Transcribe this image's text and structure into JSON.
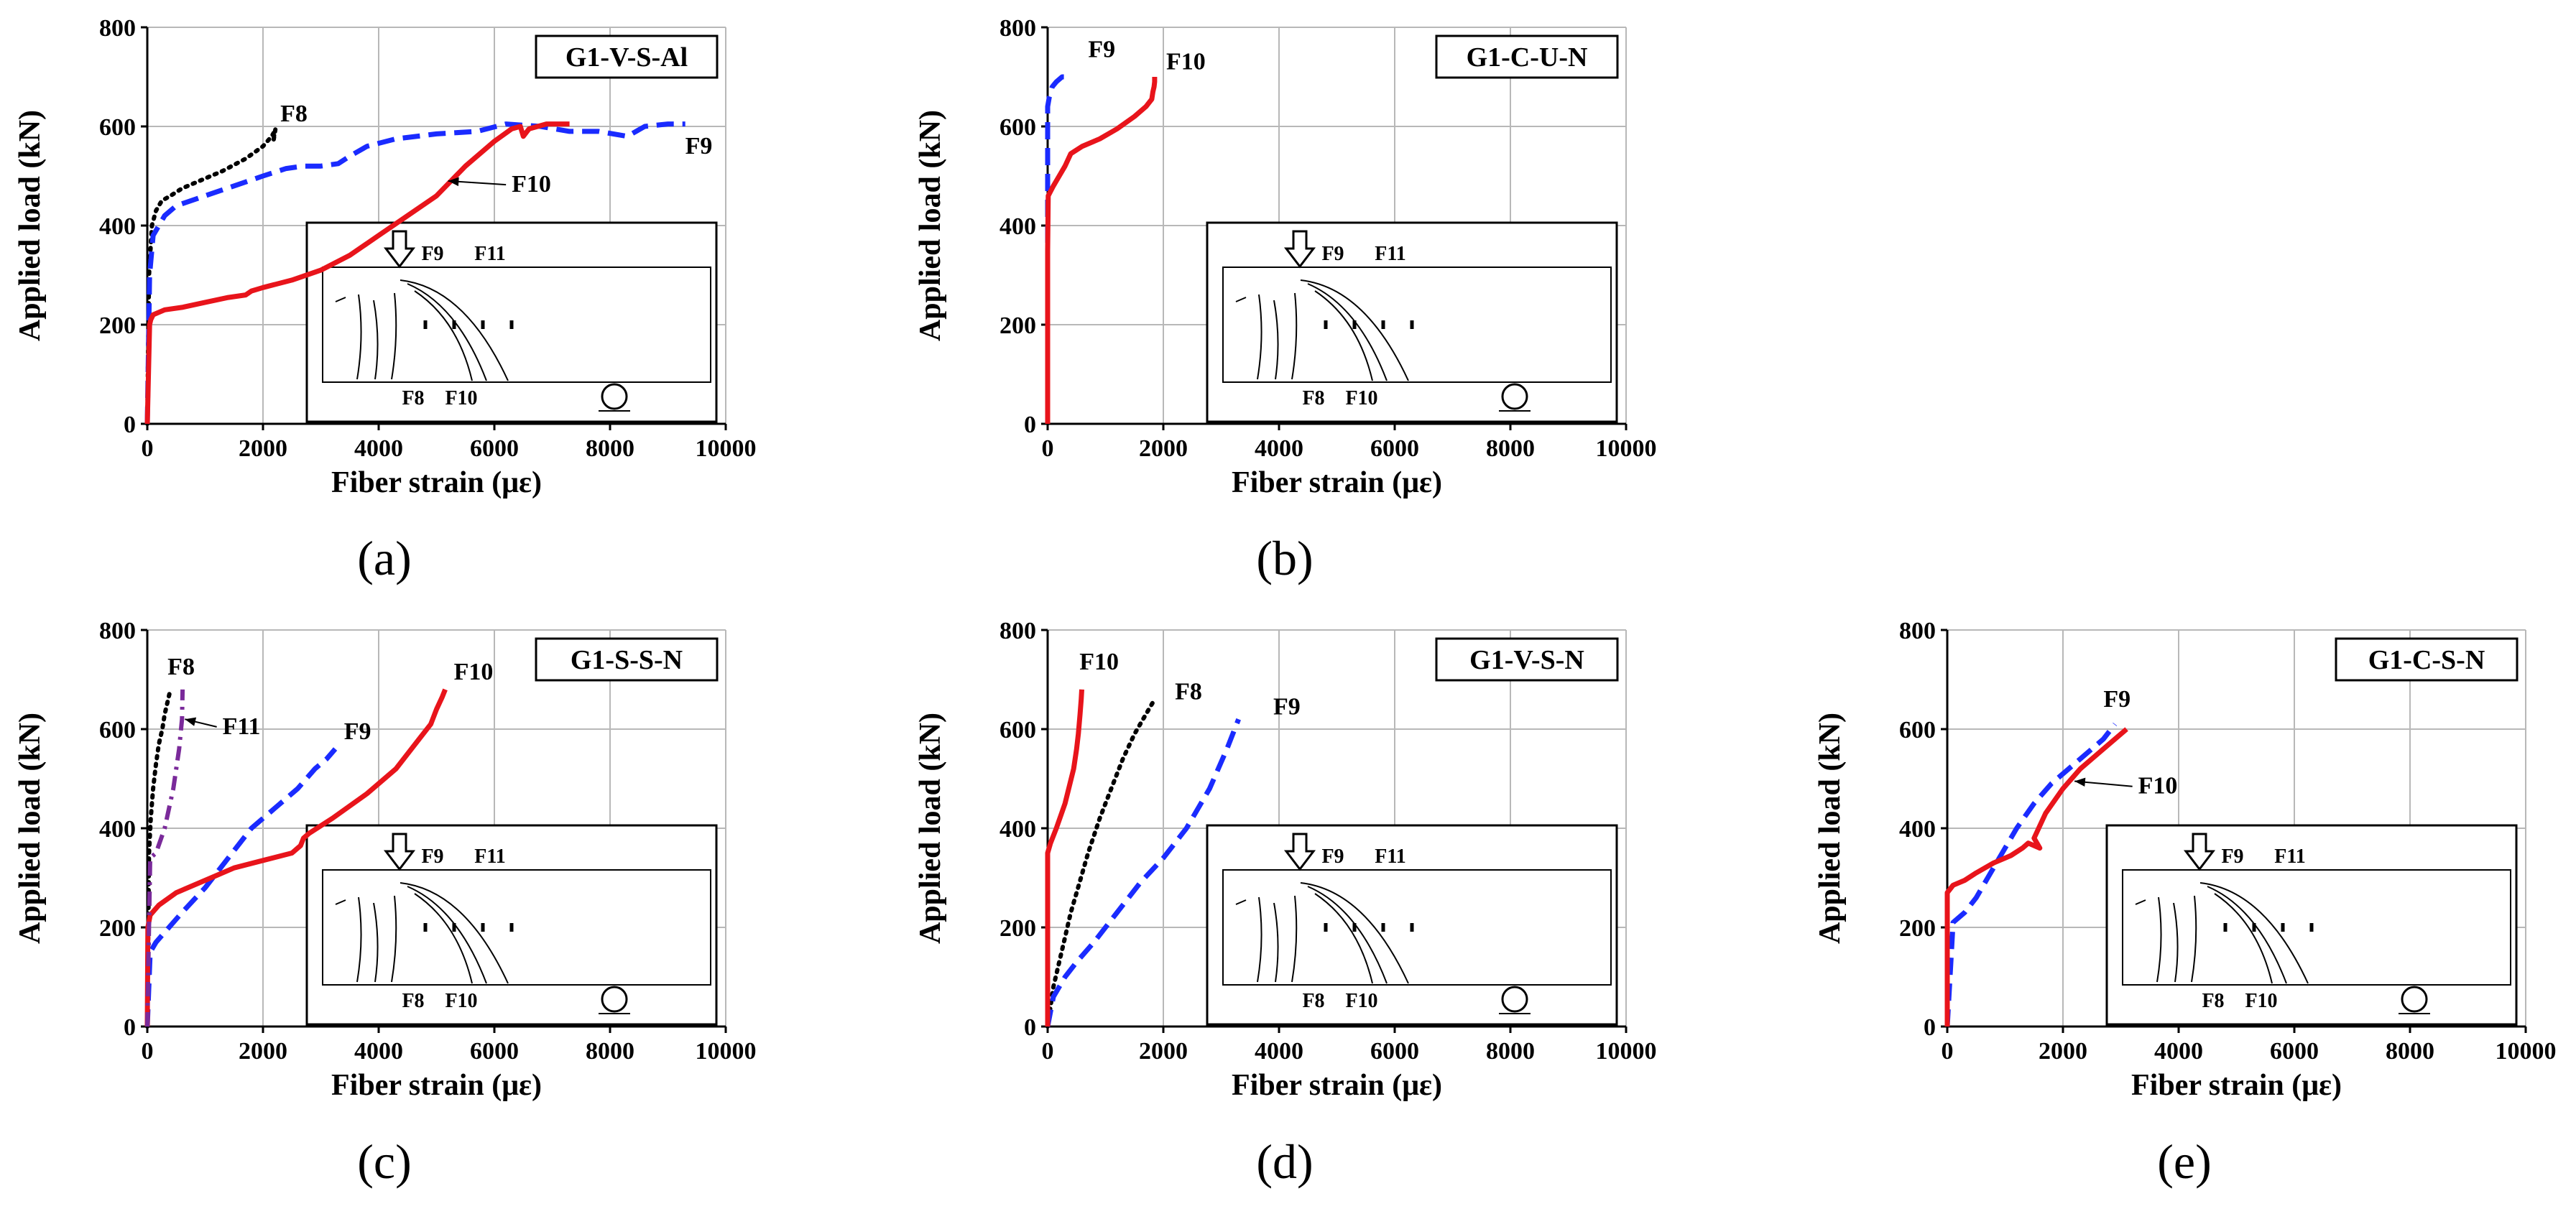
{
  "figure": {
    "panel_captions": [
      "(a)",
      "(b)",
      "(c)",
      "(d)",
      "(e)"
    ]
  },
  "colors": {
    "F8": "#000000",
    "F9": "#1a2bff",
    "F10": "#e8141b",
    "F11": "#7a2a9a",
    "grid": "#b8b8b8"
  },
  "chart_data": [
    {
      "type": "line",
      "panel": "(a)",
      "title": "G1-V-S-Al",
      "xlabel": "Fiber strain (με)",
      "ylabel": "Applied load (kN)",
      "xlim": [
        0,
        10000
      ],
      "ylim": [
        0,
        800
      ],
      "xticks": [
        0,
        2000,
        4000,
        6000,
        8000,
        10000
      ],
      "yticks": [
        0,
        200,
        400,
        600,
        800
      ],
      "grid": true,
      "series": [
        {
          "name": "F8",
          "style": "dotted",
          "x": [
            0,
            30,
            80,
            150,
            250,
            400,
            600,
            900,
            1300,
            1700,
            2000,
            2150,
            2200,
            2180,
            2230
          ],
          "y": [
            0,
            300,
            400,
            430,
            450,
            460,
            475,
            490,
            510,
            535,
            560,
            580,
            590,
            570,
            605
          ]
        },
        {
          "name": "F9",
          "style": "dashed",
          "x": [
            0,
            40,
            100,
            200,
            300,
            500,
            1000,
            1500,
            2000,
            2400,
            2700,
            3000,
            3300,
            3500,
            3800,
            4300,
            5000,
            5700,
            6200,
            6800,
            7300,
            7800,
            8300,
            8600,
            9000,
            9300
          ],
          "y": [
            0,
            300,
            380,
            400,
            420,
            440,
            460,
            480,
            500,
            515,
            520,
            520,
            525,
            540,
            560,
            575,
            585,
            590,
            605,
            600,
            590,
            590,
            580,
            600,
            605,
            605
          ]
        },
        {
          "name": "F10",
          "style": "solid",
          "x": [
            0,
            40,
            60,
            100,
            300,
            600,
            1000,
            1400,
            1700,
            1800,
            2000,
            2500,
            3000,
            3500,
            4000,
            4500,
            5000,
            5500,
            6000,
            6300,
            6450,
            6500,
            6600,
            6900,
            7300
          ],
          "y": [
            0,
            200,
            210,
            220,
            230,
            235,
            245,
            255,
            260,
            268,
            275,
            290,
            310,
            340,
            380,
            420,
            460,
            520,
            570,
            595,
            600,
            580,
            595,
            605,
            605
          ]
        }
      ],
      "annotations": [
        {
          "text": "F8",
          "x": 2300,
          "y": 610
        },
        {
          "text": "F9",
          "x": 9300,
          "y": 545
        },
        {
          "text": "F10",
          "x": 6300,
          "y": 468,
          "arrow_to": [
            5200,
            490
          ]
        }
      ],
      "inset": {
        "labels": [
          "F9",
          "F11",
          "F8",
          "F10"
        ]
      }
    },
    {
      "type": "line",
      "panel": "(b)",
      "title": "G1-C-U-N",
      "xlabel": "Fiber strain (με)",
      "ylabel": "Applied load (kN)",
      "xlim": [
        0,
        10000
      ],
      "ylim": [
        0,
        800
      ],
      "xticks": [
        0,
        2000,
        4000,
        6000,
        8000,
        10000
      ],
      "yticks": [
        0,
        200,
        400,
        600,
        800
      ],
      "grid": true,
      "series": [
        {
          "name": "F9",
          "style": "dashed",
          "x": [
            0,
            0,
            30,
            80,
            150,
            250,
            350
          ],
          "y": [
            0,
            640,
            660,
            680,
            690,
            700,
            700
          ]
        },
        {
          "name": "F10",
          "style": "solid",
          "x": [
            0,
            0,
            10,
            100,
            200,
            300,
            400,
            600,
            900,
            1200,
            1500,
            1700,
            1800,
            1820,
            1840,
            1850,
            1850
          ],
          "y": [
            0,
            350,
            460,
            480,
            500,
            520,
            545,
            560,
            575,
            595,
            620,
            640,
            655,
            670,
            680,
            690,
            700
          ]
        }
      ],
      "annotations": [
        {
          "text": "F9",
          "x": 700,
          "y": 740
        },
        {
          "text": "F10",
          "x": 2050,
          "y": 715
        }
      ],
      "inset": {
        "labels": [
          "F9",
          "F11",
          "F8",
          "F10"
        ]
      }
    },
    {
      "type": "line",
      "panel": "(c)",
      "title": "G1-S-S-N",
      "xlabel": "Fiber strain (με)",
      "ylabel": "Applied load (kN)",
      "xlim": [
        0,
        10000
      ],
      "ylim": [
        0,
        800
      ],
      "xticks": [
        0,
        2000,
        4000,
        6000,
        8000,
        10000
      ],
      "yticks": [
        0,
        200,
        400,
        600,
        800
      ],
      "grid": true,
      "series": [
        {
          "name": "F8",
          "style": "dotted",
          "x": [
            0,
            30,
            60,
            100,
            150,
            200,
            260,
            300,
            340,
            380,
            400
          ],
          "y": [
            0,
            350,
            420,
            480,
            530,
            570,
            600,
            630,
            650,
            670,
            680
          ]
        },
        {
          "name": "F9",
          "style": "dashed",
          "x": [
            0,
            50,
            150,
            300,
            600,
            1000,
            1400,
            1800,
            2200,
            2600,
            2900,
            3100,
            3250
          ],
          "y": [
            0,
            150,
            170,
            190,
            230,
            280,
            340,
            400,
            440,
            480,
            520,
            540,
            560
          ]
        },
        {
          "name": "F10",
          "style": "solid",
          "x": [
            0,
            10,
            50,
            200,
            500,
            1000,
            1500,
            2000,
            2500,
            2650,
            2700,
            2800,
            3200,
            3800,
            4300,
            4700,
            4900,
            5000,
            5100,
            5150
          ],
          "y": [
            0,
            200,
            225,
            245,
            270,
            295,
            320,
            335,
            350,
            365,
            380,
            390,
            420,
            470,
            520,
            580,
            610,
            640,
            665,
            680
          ]
        },
        {
          "name": "F11",
          "style": "dashdot",
          "x": [
            0,
            50,
            150,
            300,
            450,
            550,
            600,
            610
          ],
          "y": [
            0,
            340,
            350,
            400,
            480,
            560,
            620,
            680
          ]
        }
      ],
      "annotations": [
        {
          "text": "F8",
          "x": 350,
          "y": 710
        },
        {
          "text": "F11",
          "x": 1300,
          "y": 590,
          "arrow_to": [
            650,
            620
          ]
        },
        {
          "text": "F9",
          "x": 3400,
          "y": 580
        },
        {
          "text": "F10",
          "x": 5300,
          "y": 700
        }
      ],
      "inset": {
        "labels": [
          "F9",
          "F11",
          "F8",
          "F10"
        ]
      }
    },
    {
      "type": "line",
      "panel": "(d)",
      "title": "G1-V-S-N",
      "xlabel": "Fiber strain (με)",
      "ylabel": "Applied load (kN)",
      "xlim": [
        0,
        10000
      ],
      "ylim": [
        0,
        800
      ],
      "xticks": [
        0,
        2000,
        4000,
        6000,
        8000,
        10000
      ],
      "yticks": [
        0,
        200,
        400,
        600,
        800
      ],
      "grid": true,
      "series": [
        {
          "name": "F8",
          "style": "dotted",
          "x": [
            0,
            100,
            200,
            300,
            400,
            500,
            700,
            900,
            1100,
            1300,
            1500,
            1700,
            1850
          ],
          "y": [
            0,
            80,
            130,
            180,
            230,
            270,
            350,
            420,
            480,
            540,
            590,
            630,
            660
          ]
        },
        {
          "name": "F9",
          "style": "dashed",
          "x": [
            0,
            100,
            300,
            500,
            800,
            1200,
            1600,
            2000,
            2400,
            2800,
            3100,
            3300
          ],
          "y": [
            0,
            60,
            100,
            130,
            170,
            230,
            290,
            340,
            400,
            480,
            560,
            620
          ]
        },
        {
          "name": "F10",
          "style": "solid",
          "x": [
            0,
            0,
            50,
            150,
            300,
            450,
            500,
            530,
            560,
            580,
            590
          ],
          "y": [
            0,
            350,
            370,
            400,
            450,
            520,
            560,
            590,
            630,
            660,
            680
          ]
        }
      ],
      "annotations": [
        {
          "text": "F10",
          "x": 550,
          "y": 720
        },
        {
          "text": "F8",
          "x": 2200,
          "y": 660
        },
        {
          "text": "F9",
          "x": 3900,
          "y": 630
        }
      ],
      "inset": {
        "labels": [
          "F9",
          "F11",
          "F8",
          "F10"
        ]
      }
    },
    {
      "type": "line",
      "panel": "(e)",
      "title": "G1-C-S-N",
      "xlabel": "Fiber strain (με)",
      "ylabel": "Applied load (kN)",
      "xlim": [
        0,
        10000
      ],
      "ylim": [
        0,
        800
      ],
      "xticks": [
        0,
        2000,
        4000,
        6000,
        8000,
        10000
      ],
      "yticks": [
        0,
        200,
        400,
        600,
        800
      ],
      "grid": true,
      "series": [
        {
          "name": "F9",
          "style": "dashed",
          "x": [
            0,
            100,
            300,
            500,
            700,
            900,
            1200,
            1500,
            1800,
            2100,
            2400,
            2700,
            2900
          ],
          "y": [
            0,
            210,
            230,
            260,
            300,
            340,
            400,
            450,
            490,
            520,
            550,
            580,
            610
          ]
        },
        {
          "name": "F10",
          "style": "solid",
          "x": [
            0,
            0,
            100,
            300,
            500,
            800,
            1100,
            1300,
            1400,
            1600,
            1500,
            1700,
            2000,
            2300,
            2600,
            2900,
            3100
          ],
          "y": [
            0,
            270,
            285,
            295,
            310,
            330,
            345,
            360,
            370,
            360,
            380,
            430,
            480,
            520,
            550,
            580,
            600
          ]
        }
      ],
      "annotations": [
        {
          "text": "F9",
          "x": 2700,
          "y": 645
        },
        {
          "text": "F10",
          "x": 3300,
          "y": 470,
          "arrow_to": [
            2200,
            495
          ]
        }
      ],
      "inset": {
        "labels": [
          "F9",
          "F11",
          "F8",
          "F10"
        ]
      }
    }
  ]
}
